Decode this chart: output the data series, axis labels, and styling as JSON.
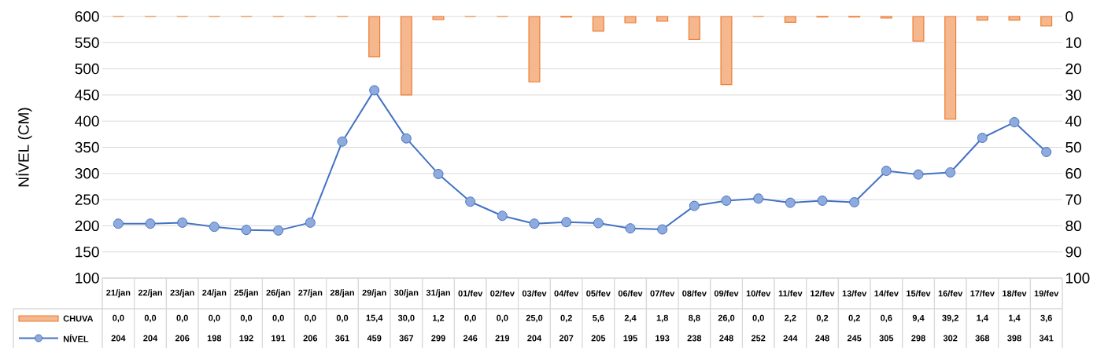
{
  "chart_data": {
    "type": "line",
    "ylabel": "NÍVEL (CM)",
    "categories": [
      "21/jan",
      "22/jan",
      "23/jan",
      "24/jan",
      "25/jan",
      "26/jan",
      "27/jan",
      "28/jan",
      "29/jan",
      "30/jan",
      "31/jan",
      "01/fev",
      "02/fev",
      "03/fev",
      "04/fev",
      "05/fev",
      "06/fev",
      "07/fev",
      "08/fev",
      "09/fev",
      "10/fev",
      "11/fev",
      "12/fev",
      "13/fev",
      "14/fev",
      "15/fev",
      "16/fev",
      "17/fev",
      "18/fev",
      "19/fev"
    ],
    "series": [
      {
        "name": "CHUVA",
        "type": "bar",
        "axis": "y2",
        "color": "#ed7d31",
        "values": [
          0.0,
          0.0,
          0.0,
          0.0,
          0.0,
          0.0,
          0.0,
          0.0,
          15.4,
          30.0,
          1.2,
          0.0,
          0.0,
          25.0,
          0.2,
          5.6,
          2.4,
          1.8,
          8.8,
          26.0,
          0.0,
          2.2,
          0.2,
          0.2,
          0.6,
          9.4,
          39.2,
          1.4,
          1.4,
          3.6
        ],
        "value_labels": [
          "0,0",
          "0,0",
          "0,0",
          "0,0",
          "0,0",
          "0,0",
          "0,0",
          "0,0",
          "15,4",
          "30,0",
          "1,2",
          "0,0",
          "0,0",
          "25,0",
          "0,2",
          "5,6",
          "2,4",
          "1,8",
          "8,8",
          "26,0",
          "0,0",
          "2,2",
          "0,2",
          "0,2",
          "0,6",
          "9,4",
          "39,2",
          "1,4",
          "1,4",
          "3,6"
        ]
      },
      {
        "name": "NÍVEL",
        "color": "#4472c4",
        "values": [
          204,
          204,
          206,
          198,
          192,
          191,
          206,
          361,
          459,
          367,
          299,
          246,
          219,
          204,
          207,
          205,
          195,
          193,
          238,
          248,
          252,
          244,
          248,
          245,
          305,
          298,
          302,
          368,
          398,
          341
        ],
        "value_labels": [
          "204",
          "204",
          "206",
          "198",
          "192",
          "191",
          "206",
          "361",
          "459",
          "367",
          "299",
          "246",
          "219",
          "204",
          "207",
          "205",
          "195",
          "193",
          "238",
          "248",
          "252",
          "244",
          "248",
          "245",
          "305",
          "298",
          "302",
          "368",
          "398",
          "341"
        ]
      }
    ],
    "ylim": [
      100,
      600
    ],
    "yticks": [
      100,
      150,
      200,
      250,
      300,
      350,
      400,
      450,
      500,
      550,
      600
    ],
    "y2lim": [
      100,
      0
    ],
    "y2ticks": [
      0,
      10,
      20,
      30,
      40,
      50,
      60,
      70,
      80,
      90,
      100
    ],
    "grid": "y",
    "legend": "bottom left",
    "marker": "circle",
    "line_style": "solid"
  }
}
